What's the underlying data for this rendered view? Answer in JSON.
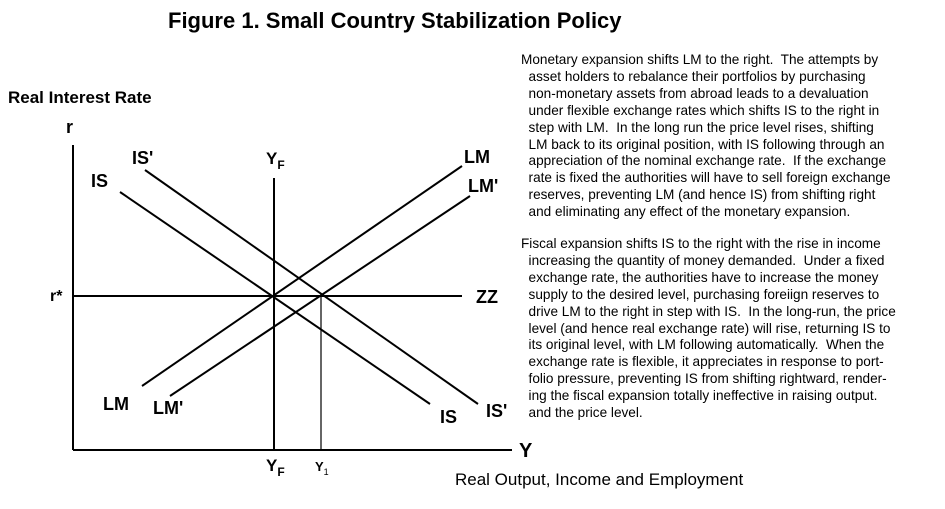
{
  "title": "Figure 1.  Small Country Stabilization Policy",
  "axes": {
    "y_title": "Real Interest Rate",
    "x_title": "Real Output, Income and Employment",
    "y_symbol": "r",
    "x_symbol": "Y"
  },
  "curves": {
    "is": "IS",
    "is_shifted": "IS'",
    "lm": "LM",
    "lm_shifted": "LM'",
    "zz": "ZZ",
    "r_star": "r*",
    "yf_top_main": "Y",
    "yf_top_sub": "F",
    "yf_bottom_main": "Y",
    "yf_bottom_sub": "F",
    "y1_main": "Y",
    "y1_sub": "1"
  },
  "text": {
    "monetary_lines": [
      "Monetary expansion shifts LM to the right.  The attempts by",
      "  asset holders to rebalance their portfolios by purchasing",
      "  non-monetary assets from abroad leads to a devaluation",
      "  under flexible exchange rates which shifts IS to the right in",
      "  step with LM.  In the long run the price level rises, shifting",
      "  LM back to its original position, with IS following through an",
      "  appreciation of the nominal exchange rate.  If the exchange",
      "  rate is fixed the authorities will have to sell foreign exchange",
      "  reserves, preventing LM (and hence IS) from shifting right",
      "  and eliminating any effect of the monetary expansion."
    ],
    "fiscal_lines": [
      "Fiscal expansion shifts IS to the right with the rise in income",
      "  increasing the quantity of money demanded.  Under a fixed",
      "  exchange rate, the authorities have to increase the money",
      "  supply to the desired level, purchasing foreiign reserves to",
      "  drive LM to the right in step with IS.  In the long-run, the price",
      "  level (and hence real exchange rate) will rise, returning IS to",
      "  its original level, with LM following automatically.  When the",
      "  exchange rate is flexible, it appreciates in response to port-",
      "  folio pressure, preventing IS from shifting rightward, render-",
      "  ing the fiscal expansion totally ineffective in raising output.",
      "  and the price level."
    ]
  }
}
